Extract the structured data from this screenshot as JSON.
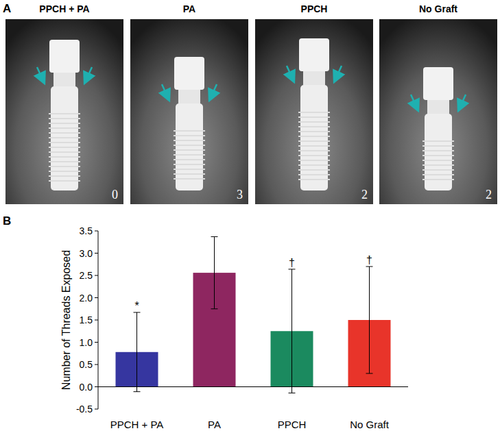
{
  "panels": [
    "A",
    "B"
  ],
  "radiographs": [
    {
      "title": "PPCH + PA",
      "threads": 0
    },
    {
      "title": "PA",
      "threads": 3
    },
    {
      "title": "PPCH",
      "threads": 2
    },
    {
      "title": "No Graft",
      "threads": 2
    }
  ],
  "chart_data": {
    "type": "bar",
    "y_label": "Number of Threads Exposed",
    "categories": [
      "PPCH + PA",
      "PA",
      "PPCH",
      "No Graft"
    ],
    "values": [
      0.78,
      2.56,
      1.25,
      1.5
    ],
    "errors": [
      0.89,
      0.81,
      1.39,
      1.2
    ],
    "colors": [
      "#3636a0",
      "#8e2660",
      "#1b8a5f",
      "#e8342a"
    ],
    "annotations": [
      {
        "category": "PPCH + PA",
        "text": "*"
      },
      {
        "category": "PPCH",
        "text": "†"
      },
      {
        "category": "No Graft",
        "text": "†"
      }
    ],
    "ylim": [
      -0.5,
      3.5
    ],
    "yticks": [
      {
        "value": -0.5,
        "label": "-0.5"
      },
      {
        "value": 0,
        "label": "0.0"
      },
      {
        "value": 0.5,
        "label": "0.5"
      },
      {
        "value": 1,
        "label": "1.0"
      },
      {
        "value": 1.5,
        "label": "1.5"
      },
      {
        "value": 2,
        "label": "2.0"
      },
      {
        "value": 2.5,
        "label": "2.5"
      },
      {
        "value": 3,
        "label": "3.0"
      },
      {
        "value": 3.5,
        "label": "3.5"
      }
    ],
    "grid": false
  }
}
